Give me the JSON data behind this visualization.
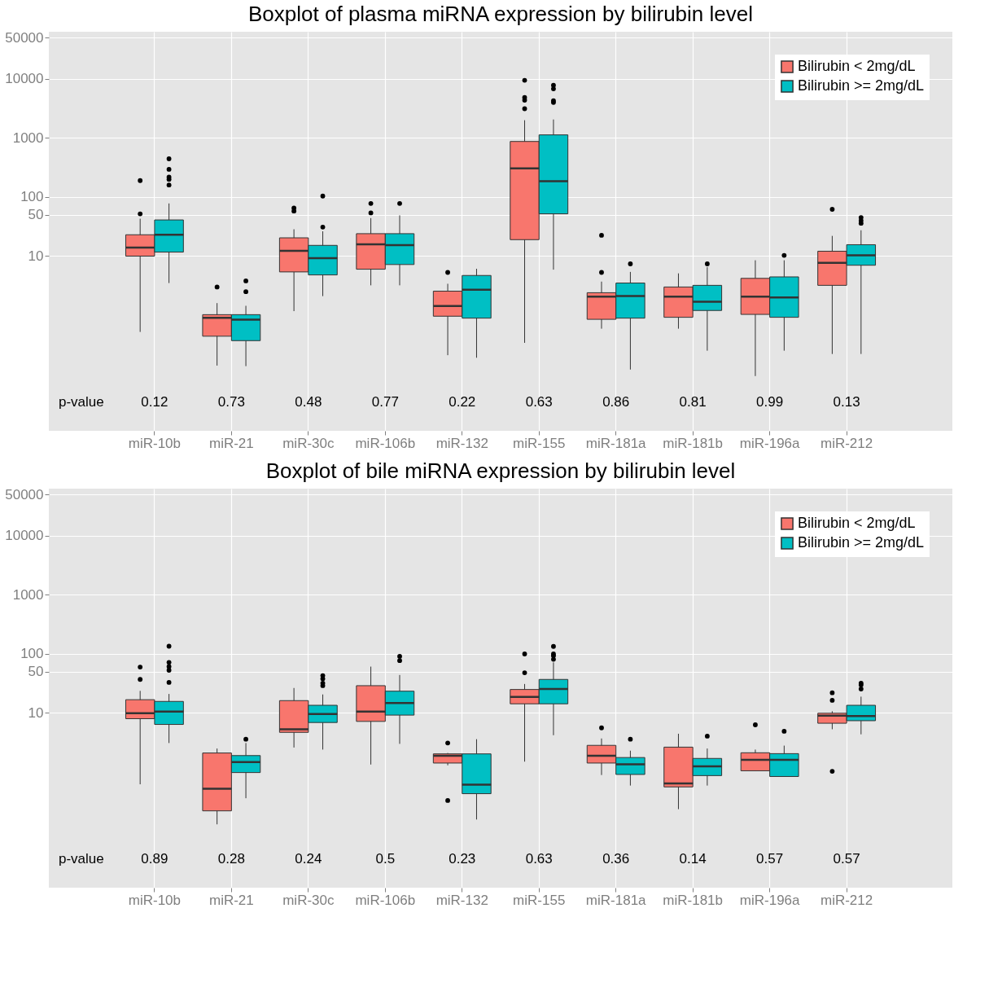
{
  "chart_data": [
    {
      "type": "box",
      "title": "Boxplot of plasma miRNA expression by bilirubin level",
      "log": true,
      "grid": true,
      "legend": "top right",
      "categories": [
        "miR-10b",
        "miR-21",
        "miR-30c",
        "miR-106b",
        "miR-132",
        "miR-155",
        "miR-181a",
        "miR-181b",
        "miR-196a",
        "miR-212"
      ],
      "ylim": [
        0.011,
        63000
      ],
      "yticks": [
        10,
        50,
        100,
        1000,
        10000,
        50000
      ],
      "series": [
        {
          "name": "Bilirubin < 2mg/dL",
          "color": "#f8766d",
          "boxes": [
            {
              "low": 0.52,
              "q1": 10,
              "median": 14,
              "q3": 23,
              "high": 43,
              "outliers": [
                52,
                190
              ]
            },
            {
              "low": 0.14,
              "q1": 0.44,
              "median": 0.9,
              "q3": 1.02,
              "high": 1.6,
              "outliers": [
                3.0
              ]
            },
            {
              "low": 1.17,
              "q1": 5.4,
              "median": 12.3,
              "q3": 20.4,
              "high": 28.5,
              "outliers": [
                58,
                65
              ]
            },
            {
              "low": 3.2,
              "q1": 6.0,
              "median": 15.9,
              "q3": 24,
              "high": 44,
              "outliers": [
                54,
                78
              ]
            },
            {
              "low": 0.21,
              "q1": 0.96,
              "median": 1.43,
              "q3": 2.55,
              "high": 3.4,
              "outliers": [
                5.3
              ]
            },
            {
              "low": 0.34,
              "q1": 19,
              "median": 305,
              "q3": 874,
              "high": 2000,
              "outliers": [
                3130,
                4370,
                4850,
                9500
              ]
            },
            {
              "low": 0.59,
              "q1": 0.85,
              "median": 2.06,
              "q3": 2.4,
              "high": 3.7,
              "outliers": [
                5.3,
                22.5
              ]
            },
            {
              "low": 0.59,
              "q1": 0.92,
              "median": 2.06,
              "q3": 3.0,
              "high": 5.1
            },
            {
              "low": 0.093,
              "q1": 1.03,
              "median": 2.06,
              "q3": 4.2,
              "high": 8.5
            },
            {
              "low": 0.22,
              "q1": 3.2,
              "median": 7.7,
              "q3": 12.1,
              "high": 22,
              "outliers": [
                62
              ]
            }
          ]
        },
        {
          "name": "Bilirubin >= 2mg/dL",
          "color": "#00bfc4",
          "boxes": [
            {
              "low": 3.5,
              "q1": 11.7,
              "median": 23,
              "q3": 41,
              "high": 78,
              "outliers": [
                160,
                200,
                218,
                295,
                445
              ]
            },
            {
              "low": 0.137,
              "q1": 0.37,
              "median": 0.84,
              "q3": 1.02,
              "high": 1.44,
              "outliers": [
                2.5,
                3.8
              ]
            },
            {
              "low": 2.1,
              "q1": 4.8,
              "median": 9.2,
              "q3": 15.2,
              "high": 26.3,
              "outliers": [
                31,
                104
              ]
            },
            {
              "low": 3.2,
              "q1": 7.2,
              "median": 15.3,
              "q3": 24,
              "high": 49,
              "outliers": [
                78
              ]
            },
            {
              "low": 0.19,
              "q1": 0.89,
              "median": 2.7,
              "q3": 4.7,
              "high": 6.1
            },
            {
              "low": 5.9,
              "q1": 52,
              "median": 185,
              "q3": 1130,
              "high": 2060,
              "outliers": [
                4000,
                4270,
                6800,
                7800
              ]
            },
            {
              "low": 0.12,
              "q1": 0.89,
              "median": 2.1,
              "q3": 3.5,
              "high": 5.4,
              "outliers": [
                7.4
              ]
            },
            {
              "low": 0.25,
              "q1": 1.2,
              "median": 1.69,
              "q3": 3.2,
              "high": 6.5,
              "outliers": [
                7.4
              ]
            },
            {
              "low": 0.25,
              "q1": 0.92,
              "median": 2.0,
              "q3": 4.45,
              "high": 8.5,
              "outliers": [
                10.3
              ]
            },
            {
              "low": 0.22,
              "q1": 7.0,
              "median": 10.3,
              "q3": 15.6,
              "high": 27.4,
              "outliers": [
                36,
                40,
                45
              ]
            }
          ]
        }
      ],
      "annotations": [
        "p-value",
        "0.12",
        "0.73",
        "0.48",
        "0.77",
        "0.22",
        "0.63",
        "0.86",
        "0.81",
        "0.99",
        "0.13"
      ]
    },
    {
      "type": "box",
      "title": "Boxplot of bile miRNA expression by bilirubin level",
      "log": true,
      "grid": true,
      "legend": "top right",
      "categories": [
        "miR-10b",
        "miR-21",
        "miR-30c",
        "miR-106b",
        "miR-132",
        "miR-155",
        "miR-181a",
        "miR-181b",
        "miR-196a",
        "miR-212"
      ],
      "ylim": [
        0.011,
        63000
      ],
      "yticks": [
        10,
        50,
        100,
        1000,
        10000,
        50000
      ],
      "series": [
        {
          "name": "Bilirubin < 2mg/dL",
          "color": "#f8766d",
          "boxes": [
            {
              "low": 0.62,
              "q1": 8.0,
              "median": 9.9,
              "q3": 16.8,
              "high": 23.7,
              "outliers": [
                37,
                60
              ]
            },
            {
              "low": 0.13,
              "q1": 0.22,
              "median": 0.52,
              "q3": 2.1,
              "high": 2.5
            },
            {
              "low": 2.6,
              "q1": 4.7,
              "median": 5.3,
              "q3": 16.2,
              "high": 26.5
            },
            {
              "low": 1.34,
              "q1": 7.2,
              "median": 10.6,
              "q3": 29,
              "high": 61
            },
            {
              "low": 1.3,
              "q1": 1.42,
              "median": 1.89,
              "q3": 2.03,
              "high": 2.1,
              "outliers": [
                0.33,
                3.1
              ]
            },
            {
              "low": 1.5,
              "q1": 14.3,
              "median": 18.7,
              "q3": 25,
              "high": 31,
              "outliers": [
                48,
                100
              ]
            },
            {
              "low": 0.89,
              "q1": 1.42,
              "median": 1.89,
              "q3": 2.83,
              "high": 3.7,
              "outliers": [
                5.6
              ]
            },
            {
              "low": 0.235,
              "q1": 0.56,
              "median": 0.64,
              "q3": 2.64,
              "high": 4.45
            },
            {
              "low": 1.05,
              "q1": 1.05,
              "median": 1.61,
              "q3": 2.12,
              "high": 2.4,
              "outliers": [
                6.3
              ]
            },
            {
              "low": 5.3,
              "q1": 6.7,
              "median": 9.0,
              "q3": 9.9,
              "high": 10.7,
              "outliers": [
                1.03,
                16.4,
                22
              ]
            }
          ]
        },
        {
          "name": "Bilirubin >= 2mg/dL",
          "color": "#00bfc4",
          "boxes": [
            {
              "low": 3.1,
              "q1": 6.4,
              "median": 10.6,
              "q3": 15.7,
              "high": 21,
              "outliers": [
                33,
                53,
                61,
                72,
                135
              ]
            },
            {
              "low": 0.36,
              "q1": 0.98,
              "median": 1.47,
              "q3": 1.9,
              "high": 3.1,
              "outliers": [
                3.6
              ]
            },
            {
              "low": 2.4,
              "q1": 6.9,
              "median": 9.6,
              "q3": 13.5,
              "high": 20.6,
              "outliers": [
                29,
                32,
                38,
                43
              ]
            },
            {
              "low": 3.0,
              "q1": 9.2,
              "median": 14.8,
              "q3": 23.4,
              "high": 44,
              "outliers": [
                77,
                91
              ]
            },
            {
              "low": 0.157,
              "q1": 0.43,
              "median": 0.61,
              "q3": 2.03,
              "high": 3.6
            },
            {
              "low": 4.2,
              "q1": 14.3,
              "median": 25.5,
              "q3": 37,
              "high": 72,
              "outliers": [
                81,
                93,
                100,
                134
              ]
            },
            {
              "low": 0.59,
              "q1": 0.91,
              "median": 1.35,
              "q3": 1.76,
              "high": 2.3,
              "outliers": [
                3.6
              ]
            },
            {
              "low": 0.59,
              "q1": 0.87,
              "median": 1.25,
              "q3": 1.7,
              "high": 2.5,
              "outliers": [
                4.05
              ]
            },
            {
              "low": 0.84,
              "q1": 0.84,
              "median": 1.61,
              "q3": 2.05,
              "high": 2.8,
              "outliers": [
                4.9
              ]
            },
            {
              "low": 4.35,
              "q1": 7.4,
              "median": 8.9,
              "q3": 13.5,
              "high": 18.9,
              "outliers": [
                25.5,
                30,
                32
              ]
            }
          ]
        }
      ],
      "annotations": [
        "p-value",
        "0.89",
        "0.28",
        "0.24",
        "0.5",
        "0.23",
        "0.63",
        "0.36",
        "0.14",
        "0.57",
        "0.57"
      ]
    }
  ]
}
